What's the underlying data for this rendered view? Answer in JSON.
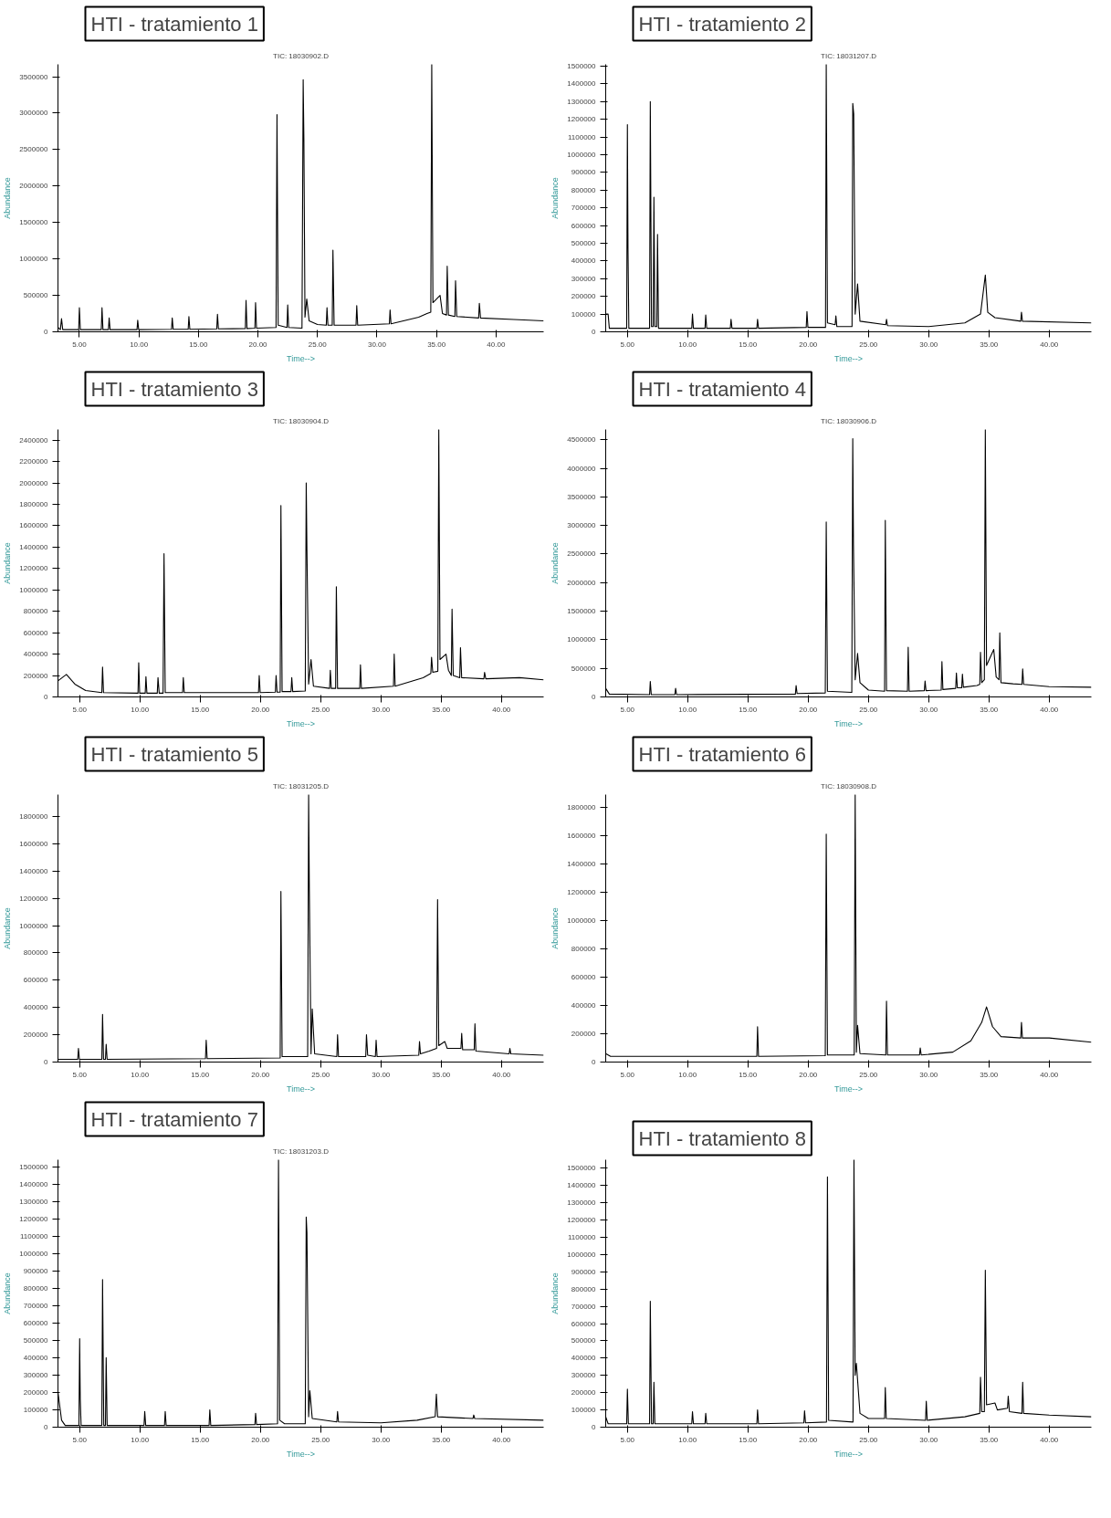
{
  "chart_data": [
    {
      "type": "line",
      "title": "HTI - tratamiento 1",
      "subtitle": "TIC: 18030902.D",
      "xlabel": "Time-->",
      "ylabel": "Abundance",
      "color": "#000000",
      "x": [
        3.2,
        3.4,
        3.5,
        3.6,
        4.94,
        5.0,
        5.08,
        6.84,
        6.9,
        6.98,
        7.44,
        7.5,
        7.58,
        9.84,
        9.9,
        9.98,
        12.74,
        12.8,
        12.88,
        14.14,
        14.2,
        14.28,
        16.54,
        16.6,
        16.68,
        18.94,
        19.0,
        19.08,
        19.74,
        19.8,
        19.88,
        21.52,
        21.6,
        21.7,
        22.44,
        22.5,
        22.58,
        23.7,
        23.8,
        23.86,
        23.95,
        24.1,
        24.3,
        25.0,
        25.74,
        25.8,
        25.88,
        26.24,
        26.3,
        26.4,
        28.24,
        28.3,
        28.38,
        31.04,
        31.1,
        31.18,
        33.5,
        34.2,
        34.52,
        34.6,
        34.7,
        35.3,
        35.5,
        35.84,
        35.9,
        36.0,
        36.54,
        36.6,
        36.7,
        38.54,
        38.6,
        38.7,
        41.5,
        44.0
      ],
      "values": [
        60000,
        30000,
        180000,
        30000,
        30000,
        330000,
        30000,
        30000,
        330000,
        30000,
        30000,
        190000,
        30000,
        30000,
        160000,
        30000,
        35000,
        190000,
        35000,
        35000,
        210000,
        35000,
        40000,
        240000,
        40000,
        45000,
        430000,
        45000,
        50000,
        400000,
        50000,
        60000,
        2980000,
        90000,
        60000,
        370000,
        60000,
        50000,
        3460000,
        2630000,
        200000,
        450000,
        150000,
        100000,
        90000,
        330000,
        90000,
        90000,
        1120000,
        90000,
        90000,
        360000,
        90000,
        110000,
        300000,
        110000,
        200000,
        250000,
        270000,
        3670000,
        400000,
        500000,
        250000,
        230000,
        900000,
        230000,
        210000,
        700000,
        210000,
        190000,
        390000,
        190000,
        170000,
        150000
      ],
      "xlim": [
        3.2,
        44.0
      ],
      "xticks": [
        {
          "value": 5,
          "label": "5.00"
        },
        {
          "value": 10,
          "label": "10.00"
        },
        {
          "value": 15,
          "label": "15.00"
        },
        {
          "value": 20,
          "label": "20.00"
        },
        {
          "value": 25,
          "label": "25.00"
        },
        {
          "value": 30,
          "label": "30.00"
        },
        {
          "value": 35,
          "label": "35.00"
        },
        {
          "value": 40,
          "label": "40.00"
        }
      ],
      "ylim": [
        0,
        3670000
      ],
      "yticks": [
        0,
        500000,
        1000000,
        1500000,
        2000000,
        2500000,
        3000000,
        3500000
      ]
    },
    {
      "type": "line",
      "title": "HTI - tratamiento 2",
      "subtitle": "TIC: 18031207.D",
      "xlabel": "Time-->",
      "ylabel": "Abundance",
      "color": "#000000",
      "x": [
        3.2,
        3.4,
        3.5,
        4.94,
        5.0,
        5.05,
        5.12,
        6.84,
        6.9,
        7.0,
        7.14,
        7.2,
        7.28,
        7.44,
        7.5,
        7.58,
        10.34,
        10.4,
        10.48,
        11.44,
        11.5,
        11.58,
        13.54,
        13.6,
        13.68,
        15.74,
        15.8,
        15.88,
        19.84,
        19.9,
        19.98,
        21.44,
        21.5,
        21.6,
        22.24,
        22.3,
        22.38,
        23.64,
        23.7,
        23.78,
        23.9,
        24.1,
        24.3,
        26.44,
        26.5,
        26.58,
        30.0,
        33.0,
        34.3,
        34.7,
        34.9,
        35.5,
        37.64,
        37.7,
        37.78,
        43.5
      ],
      "values": [
        100000,
        100000,
        20000,
        20000,
        1170000,
        460000,
        20000,
        20000,
        1300000,
        30000,
        30000,
        760000,
        30000,
        30000,
        550000,
        20000,
        20000,
        100000,
        20000,
        20000,
        95000,
        20000,
        20000,
        70000,
        20000,
        20000,
        70000,
        20000,
        25000,
        115000,
        25000,
        25000,
        1510000,
        50000,
        40000,
        90000,
        30000,
        30000,
        1290000,
        1230000,
        100000,
        270000,
        60000,
        40000,
        70000,
        35000,
        30000,
        50000,
        100000,
        320000,
        110000,
        80000,
        60000,
        110000,
        60000,
        50000
      ],
      "xlim": [
        3.2,
        43.5
      ],
      "xticks": [
        {
          "value": 5,
          "label": "5.00"
        },
        {
          "value": 10,
          "label": "10.00"
        },
        {
          "value": 15,
          "label": "15.00"
        },
        {
          "value": 20,
          "label": "20.00"
        },
        {
          "value": 25,
          "label": "25.00"
        },
        {
          "value": 30,
          "label": "30.00"
        },
        {
          "value": 35,
          "label": "35.00"
        },
        {
          "value": 40,
          "label": "40.00"
        }
      ],
      "ylim": [
        0,
        1510000
      ],
      "yticks": [
        0,
        100000,
        200000,
        300000,
        400000,
        500000,
        600000,
        700000,
        800000,
        900000,
        1000000,
        1100000,
        1200000,
        1300000,
        1400000,
        1500000
      ]
    },
    {
      "type": "line",
      "title": "HTI - tratamiento 3",
      "subtitle": "TIC: 18030904.D",
      "xlabel": "Time-->",
      "ylabel": "Abundance",
      "color": "#000000",
      "x": [
        3.2,
        3.9,
        4.6,
        5.5,
        6.84,
        6.9,
        6.98,
        9.84,
        9.9,
        9.98,
        10.44,
        10.5,
        10.58,
        11.44,
        11.5,
        11.6,
        11.92,
        12.0,
        12.1,
        13.54,
        13.6,
        13.68,
        19.84,
        19.9,
        19.98,
        21.24,
        21.3,
        21.38,
        21.64,
        21.7,
        21.8,
        22.54,
        22.6,
        22.68,
        23.72,
        23.8,
        23.86,
        24.0,
        24.2,
        24.4,
        25.74,
        25.8,
        25.88,
        26.24,
        26.3,
        26.4,
        28.24,
        28.3,
        28.38,
        31.04,
        31.1,
        31.18,
        33.5,
        34.14,
        34.2,
        34.3,
        34.72,
        34.8,
        34.9,
        35.4,
        35.6,
        35.84,
        35.9,
        36.0,
        36.54,
        36.6,
        36.7,
        38.54,
        38.6,
        38.7,
        41.5,
        43.5
      ],
      "values": [
        150000,
        210000,
        120000,
        60000,
        40000,
        280000,
        40000,
        35000,
        320000,
        35000,
        35000,
        190000,
        35000,
        35000,
        180000,
        35000,
        35000,
        1340000,
        40000,
        40000,
        180000,
        40000,
        40000,
        200000,
        40000,
        45000,
        200000,
        45000,
        45000,
        1790000,
        50000,
        50000,
        180000,
        50000,
        55000,
        2000000,
        1370000,
        120000,
        350000,
        100000,
        80000,
        250000,
        80000,
        80000,
        1030000,
        80000,
        80000,
        300000,
        80000,
        100000,
        400000,
        100000,
        180000,
        220000,
        370000,
        230000,
        240000,
        2500000,
        350000,
        400000,
        250000,
        200000,
        820000,
        200000,
        180000,
        460000,
        180000,
        170000,
        230000,
        170000,
        180000,
        160000
      ],
      "xlim": [
        3.2,
        43.5
      ],
      "xticks": [
        {
          "value": 5,
          "label": "5.00"
        },
        {
          "value": 10,
          "label": "10.00"
        },
        {
          "value": 15,
          "label": "15.00"
        },
        {
          "value": 20,
          "label": "20.00"
        },
        {
          "value": 25,
          "label": "25.00"
        },
        {
          "value": 30,
          "label": "30.00"
        },
        {
          "value": 35,
          "label": "35.00"
        },
        {
          "value": 40,
          "label": "40.00"
        }
      ],
      "ylim": [
        0,
        2500000
      ],
      "yticks": [
        0,
        200000,
        400000,
        600000,
        800000,
        1000000,
        1200000,
        1400000,
        1600000,
        1800000,
        2000000,
        2200000,
        2400000
      ]
    },
    {
      "type": "line",
      "title": "HTI - tratamiento 4",
      "subtitle": "TIC: 18030906.D",
      "xlabel": "Time-->",
      "ylabel": "Abundance",
      "color": "#000000",
      "x": [
        3.2,
        3.5,
        6.84,
        6.9,
        6.98,
        8.94,
        9.0,
        9.08,
        18.94,
        19.0,
        19.08,
        21.42,
        21.5,
        21.6,
        23.62,
        23.7,
        23.76,
        23.9,
        24.1,
        24.3,
        25.0,
        26.34,
        26.4,
        26.5,
        28.24,
        28.3,
        28.38,
        29.64,
        29.7,
        29.78,
        31.04,
        31.1,
        31.18,
        32.24,
        32.3,
        32.38,
        32.74,
        32.8,
        32.88,
        34.0,
        34.24,
        34.3,
        34.4,
        34.62,
        34.7,
        34.8,
        35.4,
        35.6,
        35.84,
        35.9,
        36.0,
        37.0,
        37.74,
        37.8,
        37.88,
        40.0,
        43.5
      ],
      "values": [
        150000,
        50000,
        40000,
        270000,
        40000,
        40000,
        150000,
        40000,
        50000,
        200000,
        60000,
        70000,
        3060000,
        100000,
        80000,
        4520000,
        2650000,
        300000,
        760000,
        250000,
        120000,
        100000,
        3090000,
        110000,
        100000,
        870000,
        100000,
        110000,
        280000,
        110000,
        120000,
        620000,
        130000,
        150000,
        420000,
        160000,
        160000,
        400000,
        170000,
        200000,
        220000,
        780000,
        250000,
        300000,
        4680000,
        550000,
        830000,
        350000,
        300000,
        1120000,
        250000,
        230000,
        220000,
        490000,
        220000,
        180000,
        170000
      ],
      "xlim": [
        3.2,
        43.5
      ],
      "xticks": [
        {
          "value": 5,
          "label": "5.00"
        },
        {
          "value": 10,
          "label": "10.00"
        },
        {
          "value": 15,
          "label": "15.00"
        },
        {
          "value": 20,
          "label": "20.00"
        },
        {
          "value": 25,
          "label": "25.00"
        },
        {
          "value": 30,
          "label": "30.00"
        },
        {
          "value": 35,
          "label": "35.00"
        },
        {
          "value": 40,
          "label": "40.00"
        }
      ],
      "ylim": [
        0,
        4680000
      ],
      "yticks": [
        0,
        500000,
        1000000,
        1500000,
        2000000,
        2500000,
        3000000,
        3500000,
        4000000,
        4500000
      ]
    },
    {
      "type": "line",
      "title": "HTI - tratamiento 5",
      "subtitle": "TIC: 18031205.D",
      "xlabel": "Time-->",
      "ylabel": "Abundance",
      "color": "#000000",
      "x": [
        3.2,
        4.84,
        4.9,
        4.98,
        6.84,
        6.9,
        6.98,
        7.14,
        7.2,
        7.28,
        15.44,
        15.5,
        15.58,
        21.64,
        21.7,
        21.8,
        23.92,
        24.0,
        24.06,
        24.2,
        24.3,
        24.5,
        26.34,
        26.4,
        26.48,
        28.74,
        28.8,
        28.9,
        29.54,
        29.6,
        29.68,
        33.14,
        33.2,
        33.28,
        34.0,
        34.62,
        34.7,
        34.8,
        35.3,
        35.5,
        36.64,
        36.7,
        36.78,
        37.74,
        37.8,
        37.88,
        40.64,
        40.7,
        40.78,
        43.5
      ],
      "values": [
        20000,
        20000,
        100000,
        20000,
        20000,
        350000,
        20000,
        20000,
        130000,
        20000,
        25000,
        160000,
        25000,
        30000,
        1250000,
        40000,
        40000,
        1960000,
        1250000,
        60000,
        390000,
        60000,
        40000,
        200000,
        40000,
        40000,
        200000,
        50000,
        40000,
        160000,
        40000,
        50000,
        150000,
        60000,
        80000,
        100000,
        1190000,
        120000,
        150000,
        100000,
        100000,
        210000,
        90000,
        90000,
        280000,
        80000,
        60000,
        100000,
        60000,
        50000
      ],
      "xlim": [
        3.2,
        43.5
      ],
      "xticks": [
        {
          "value": 5,
          "label": "5.00"
        },
        {
          "value": 10,
          "label": "10.00"
        },
        {
          "value": 15,
          "label": "15.00"
        },
        {
          "value": 20,
          "label": "20.00"
        },
        {
          "value": 25,
          "label": "25.00"
        },
        {
          "value": 30,
          "label": "30.00"
        },
        {
          "value": 35,
          "label": "35.00"
        },
        {
          "value": 40,
          "label": "40.00"
        }
      ],
      "ylim": [
        0,
        1960000
      ],
      "yticks": [
        0,
        200000,
        400000,
        600000,
        800000,
        1000000,
        1200000,
        1400000,
        1600000,
        1800000
      ]
    },
    {
      "type": "line",
      "title": "HTI - tratamiento 6",
      "subtitle": "TIC: 18030908.D",
      "xlabel": "Time-->",
      "ylabel": "Abundance",
      "color": "#000000",
      "x": [
        3.2,
        3.6,
        15.74,
        15.8,
        15.88,
        21.42,
        21.5,
        21.6,
        23.82,
        23.9,
        24.0,
        24.1,
        24.3,
        26.44,
        26.5,
        26.58,
        29.24,
        29.3,
        29.38,
        32.0,
        33.5,
        34.4,
        34.8,
        35.3,
        36.0,
        37.64,
        37.7,
        37.78,
        40.0,
        43.5
      ],
      "values": [
        60000,
        40000,
        40000,
        250000,
        40000,
        45000,
        1610000,
        50000,
        50000,
        1890000,
        70000,
        260000,
        60000,
        50000,
        430000,
        50000,
        50000,
        100000,
        50000,
        70000,
        150000,
        280000,
        390000,
        250000,
        180000,
        170000,
        280000,
        170000,
        170000,
        140000
      ],
      "xlim": [
        3.2,
        43.5
      ],
      "xticks": [
        {
          "value": 5,
          "label": "5.00"
        },
        {
          "value": 10,
          "label": "10.00"
        },
        {
          "value": 15,
          "label": "15.00"
        },
        {
          "value": 20,
          "label": "20.00"
        },
        {
          "value": 25,
          "label": "25.00"
        },
        {
          "value": 30,
          "label": "30.00"
        },
        {
          "value": 35,
          "label": "35.00"
        },
        {
          "value": 40,
          "label": "40.00"
        }
      ],
      "ylim": [
        0,
        1890000
      ],
      "yticks": [
        0,
        200000,
        400000,
        600000,
        800000,
        1000000,
        1200000,
        1400000,
        1600000,
        1800000
      ]
    },
    {
      "type": "line",
      "title": "HTI - tratamiento 7",
      "subtitle": "TIC: 18031203.D",
      "xlabel": "Time-->",
      "ylabel": "Abundance",
      "color": "#000000",
      "x": [
        3.2,
        3.5,
        3.8,
        4.94,
        5.0,
        5.05,
        5.12,
        6.84,
        6.9,
        7.0,
        7.14,
        7.2,
        7.28,
        10.34,
        10.4,
        10.48,
        12.04,
        12.1,
        12.18,
        15.74,
        15.8,
        15.88,
        19.54,
        19.6,
        19.68,
        21.42,
        21.5,
        21.6,
        22.0,
        23.72,
        23.8,
        23.86,
        24.0,
        24.1,
        24.3,
        26.34,
        26.4,
        26.48,
        30.0,
        33.0,
        34.5,
        34.6,
        34.7,
        37.64,
        37.7,
        37.78,
        43.5
      ],
      "values": [
        200000,
        40000,
        10000,
        10000,
        510000,
        160000,
        10000,
        10000,
        850000,
        10000,
        10000,
        400000,
        10000,
        10000,
        90000,
        10000,
        10000,
        90000,
        10000,
        10000,
        100000,
        10000,
        15000,
        80000,
        15000,
        20000,
        1540000,
        40000,
        20000,
        20000,
        1210000,
        1120000,
        60000,
        210000,
        50000,
        30000,
        90000,
        30000,
        25000,
        40000,
        60000,
        190000,
        60000,
        50000,
        70000,
        50000,
        40000
      ],
      "xlim": [
        3.2,
        43.5
      ],
      "xticks": [
        {
          "value": 5,
          "label": "5.00"
        },
        {
          "value": 10,
          "label": "10.00"
        },
        {
          "value": 15,
          "label": "15.00"
        },
        {
          "value": 20,
          "label": "20.00"
        },
        {
          "value": 25,
          "label": "25.00"
        },
        {
          "value": 30,
          "label": "30.00"
        },
        {
          "value": 35,
          "label": "35.00"
        },
        {
          "value": 40,
          "label": "40.00"
        }
      ],
      "ylim": [
        0,
        1540000
      ],
      "yticks": [
        0,
        100000,
        200000,
        300000,
        400000,
        500000,
        600000,
        700000,
        800000,
        900000,
        1000000,
        1100000,
        1200000,
        1300000,
        1400000,
        1500000
      ]
    },
    {
      "type": "line",
      "title": "HTI - tratamiento 8",
      "xlabel": "Time-->",
      "ylabel": "Abundance",
      "color": "#000000",
      "x": [
        3.2,
        3.4,
        4.94,
        5.0,
        5.08,
        6.84,
        6.9,
        7.0,
        7.14,
        7.2,
        7.28,
        10.34,
        10.4,
        10.48,
        11.44,
        11.5,
        11.58,
        15.74,
        15.8,
        15.88,
        19.64,
        19.7,
        19.78,
        21.52,
        21.6,
        21.7,
        23.72,
        23.8,
        23.9,
        24.0,
        24.3,
        25.0,
        26.34,
        26.4,
        26.48,
        29.74,
        29.8,
        29.88,
        33.0,
        34.24,
        34.3,
        34.4,
        34.62,
        34.7,
        34.8,
        35.5,
        35.7,
        36.54,
        36.6,
        36.7,
        37.74,
        37.8,
        37.88,
        40.0,
        43.5
      ],
      "values": [
        60000,
        20000,
        20000,
        220000,
        20000,
        20000,
        730000,
        20000,
        20000,
        260000,
        20000,
        20000,
        90000,
        20000,
        20000,
        80000,
        20000,
        20000,
        100000,
        20000,
        25000,
        95000,
        25000,
        30000,
        1450000,
        40000,
        30000,
        1550000,
        300000,
        370000,
        80000,
        50000,
        50000,
        230000,
        50000,
        40000,
        150000,
        40000,
        60000,
        80000,
        290000,
        90000,
        90000,
        910000,
        130000,
        140000,
        100000,
        110000,
        180000,
        90000,
        80000,
        260000,
        80000,
        70000,
        60000
      ],
      "xlim": [
        3.2,
        43.5
      ],
      "xticks": [
        {
          "value": 5,
          "label": "5.00"
        },
        {
          "value": 10,
          "label": "10.00"
        },
        {
          "value": 15,
          "label": "15.00"
        },
        {
          "value": 20,
          "label": "20.00"
        },
        {
          "value": 25,
          "label": "25.00"
        },
        {
          "value": 30,
          "label": "30.00"
        },
        {
          "value": 35,
          "label": "35.00"
        },
        {
          "value": 40,
          "label": "40.00"
        }
      ],
      "ylim": [
        0,
        1550000
      ],
      "yticks": [
        0,
        100000,
        200000,
        300000,
        400000,
        500000,
        600000,
        700000,
        800000,
        900000,
        1000000,
        1100000,
        1200000,
        1300000,
        1400000,
        1500000
      ]
    }
  ]
}
